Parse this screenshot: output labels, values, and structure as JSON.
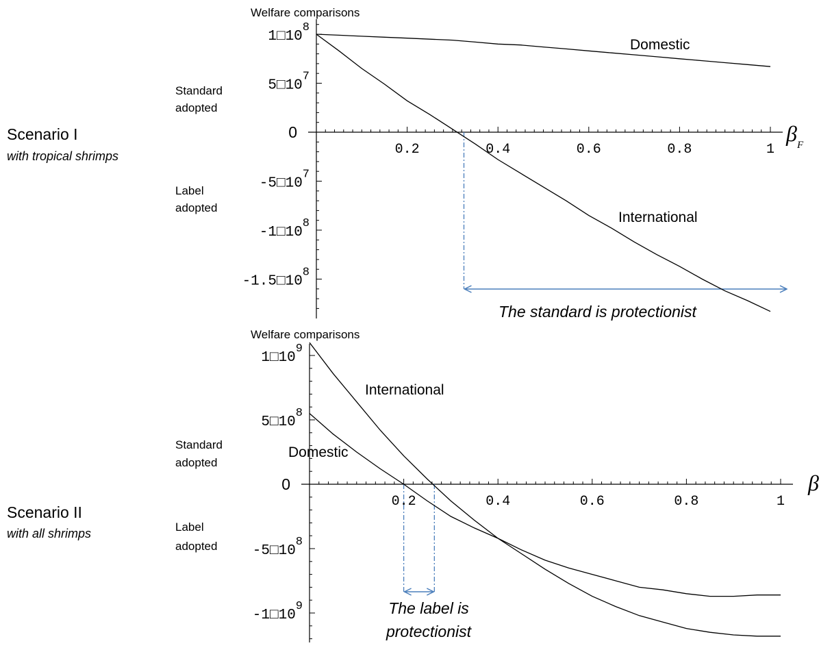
{
  "side_labels": {
    "scenario1": "Scenario I",
    "scenario1_sub": "with tropical shrimps",
    "scenario2": "Scenario II",
    "scenario2_sub": "with all shrimps"
  },
  "colors": {
    "curve": "#000000",
    "axis": "#000000",
    "guide": "#4a7ebb",
    "arrow": "#4a7ebb"
  },
  "chart_data": [
    {
      "type": "line",
      "title": "Welfare comparisons",
      "xlabel": "β",
      "xlabel_sub": "F",
      "xlim": [
        0,
        1
      ],
      "ylim": [
        -185000000.0,
        110000000.0
      ],
      "x_ticks": [
        {
          "value": 0.2,
          "label": "0.2"
        },
        {
          "value": 0.4,
          "label": "0.4"
        },
        {
          "value": 0.6,
          "label": "0.6"
        },
        {
          "value": 0.8,
          "label": "0.8"
        },
        {
          "value": 1.0,
          "label": "1"
        }
      ],
      "y_ticks": [
        {
          "value": 100000000.0,
          "label": "1□10",
          "exp": "8"
        },
        {
          "value": 50000000.0,
          "label": "5□10",
          "exp": "7"
        },
        {
          "value": 0,
          "label": "0",
          "exp": ""
        },
        {
          "value": -50000000.0,
          "label": "-5□10",
          "exp": "7"
        },
        {
          "value": -100000000.0,
          "label": "-1□10",
          "exp": "8"
        },
        {
          "value": -150000000.0,
          "label": "-1.5□10",
          "exp": "8"
        }
      ],
      "region_labels": {
        "upper": [
          "Standard",
          "adopted"
        ],
        "lower": [
          "Label",
          "adopted"
        ]
      },
      "series": [
        {
          "name": "Domestic",
          "x": [
            0,
            0.05,
            0.1,
            0.15,
            0.2,
            0.25,
            0.3,
            0.35,
            0.4,
            0.45,
            0.5,
            0.55,
            0.6,
            0.65,
            0.7,
            0.75,
            0.8,
            0.85,
            0.9,
            0.95,
            1.0
          ],
          "y": [
            100000000.0,
            99000000.0,
            98000000.0,
            97000000.0,
            96000000.0,
            95000000.0,
            94000000.0,
            92000000.0,
            90000000.0,
            89000000.0,
            87000000.0,
            85000000.0,
            83000000.0,
            81000000.0,
            79000000.0,
            77000000.0,
            75000000.0,
            73000000.0,
            71000000.0,
            69000000.0,
            67000000.0
          ]
        },
        {
          "name": "International",
          "x": [
            0,
            0.05,
            0.1,
            0.15,
            0.2,
            0.25,
            0.3,
            0.35,
            0.4,
            0.45,
            0.5,
            0.55,
            0.6,
            0.65,
            0.7,
            0.75,
            0.8,
            0.85,
            0.9,
            0.95,
            1.0
          ],
          "y": [
            100000000.0,
            83000000.0,
            65000000.0,
            49000000.0,
            32000000.0,
            18000000.0,
            3000000.0,
            -12000000.0,
            -28000000.0,
            -42000000.0,
            -56000000.0,
            -70000000.0,
            -85000000.0,
            -98000000.0,
            -112000000.0,
            -125000000.0,
            -137000000.0,
            -150000000.0,
            -162000000.0,
            -172000000.0,
            -183000000.0
          ]
        }
      ],
      "guide_x": [
        0.325
      ],
      "range_arrow": {
        "from": 0.325,
        "to": 1.0
      },
      "annotation": "The standard is protectionist"
    },
    {
      "type": "line",
      "title": "Welfare comparisons",
      "xlabel": "β",
      "xlabel_sub": "",
      "xlim": [
        0,
        1
      ],
      "ylim": [
        -1250000000.0,
        1150000000.0
      ],
      "x_ticks": [
        {
          "value": 0.2,
          "label": "0.2"
        },
        {
          "value": 0.4,
          "label": "0.4"
        },
        {
          "value": 0.6,
          "label": "0.6"
        },
        {
          "value": 0.8,
          "label": "0.8"
        },
        {
          "value": 1.0,
          "label": "1"
        }
      ],
      "y_ticks": [
        {
          "value": 1000000000.0,
          "label": "1□10",
          "exp": "9"
        },
        {
          "value": 500000000.0,
          "label": "5□10",
          "exp": "8"
        },
        {
          "value": 0,
          "label": "0",
          "exp": ""
        },
        {
          "value": -500000000.0,
          "label": "-5□10",
          "exp": "8"
        },
        {
          "value": -1000000000.0,
          "label": "-1□10",
          "exp": "9"
        }
      ],
      "region_labels": {
        "upper": [
          "Standard",
          "adopted"
        ],
        "lower": [
          "Label",
          "adopted"
        ]
      },
      "series": [
        {
          "name": "International",
          "x": [
            0,
            0.05,
            0.1,
            0.15,
            0.2,
            0.25,
            0.3,
            0.35,
            0.4,
            0.45,
            0.5,
            0.55,
            0.6,
            0.65,
            0.7,
            0.75,
            0.8,
            0.85,
            0.9,
            0.95,
            1.0
          ],
          "y": [
            1100000000.0,
            860000000.0,
            640000000.0,
            420000000.0,
            220000000.0,
            40000000.0,
            -130000000.0,
            -280000000.0,
            -420000000.0,
            -540000000.0,
            -660000000.0,
            -770000000.0,
            -870000000.0,
            -950000000.0,
            -1020000000.0,
            -1070000000.0,
            -1120000000.0,
            -1150000000.0,
            -1170000000.0,
            -1180000000.0,
            -1180000000.0
          ]
        },
        {
          "name": "Domestic",
          "x": [
            0,
            0.05,
            0.1,
            0.15,
            0.2,
            0.25,
            0.3,
            0.35,
            0.4,
            0.45,
            0.5,
            0.55,
            0.6,
            0.65,
            0.7,
            0.75,
            0.8,
            0.85,
            0.9,
            0.95,
            1.0
          ],
          "y": [
            550000000.0,
            390000000.0,
            250000000.0,
            120000000.0,
            0,
            -130000000.0,
            -250000000.0,
            -340000000.0,
            -420000000.0,
            -510000000.0,
            -590000000.0,
            -650000000.0,
            -700000000.0,
            -750000000.0,
            -800000000.0,
            -820000000.0,
            -850000000.0,
            -870000000.0,
            -870000000.0,
            -860000000.0,
            -860000000.0
          ]
        }
      ],
      "guide_x": [
        0.2,
        0.265
      ],
      "range_arrow": {
        "from": 0.2,
        "to": 0.265
      },
      "annotation_lines": [
        "The label is",
        "protectionist"
      ]
    }
  ]
}
